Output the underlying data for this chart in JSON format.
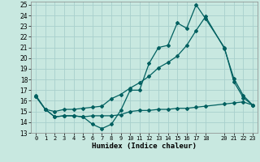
{
  "xlabel": "Humidex (Indice chaleur)",
  "bg_color": "#c8e8e0",
  "grid_color": "#a8d0cc",
  "line_color": "#006060",
  "xlim": [
    -0.5,
    23.5
  ],
  "ylim": [
    13,
    25.3
  ],
  "yticks": [
    13,
    14,
    15,
    16,
    17,
    18,
    19,
    20,
    21,
    22,
    23,
    24,
    25
  ],
  "xtick_positions": [
    0,
    1,
    2,
    3,
    4,
    5,
    6,
    7,
    8,
    9,
    10,
    11,
    12,
    13,
    14,
    15,
    16,
    17,
    18,
    20,
    21,
    22,
    23
  ],
  "xtick_labels": [
    "0",
    "1",
    "2",
    "3",
    "4",
    "5",
    "6",
    "7",
    "8",
    "9",
    "10",
    "11",
    "12",
    "13",
    "14",
    "15",
    "16",
    "17",
    "18",
    "20",
    "21",
    "22",
    "23"
  ],
  "series1_x": [
    0,
    1,
    2,
    3,
    4,
    5,
    6,
    7,
    8,
    9,
    10,
    11,
    12,
    13,
    14,
    15,
    16,
    17,
    18,
    20,
    21,
    22,
    23
  ],
  "series1_y": [
    16.5,
    15.2,
    14.5,
    14.6,
    14.6,
    14.5,
    13.8,
    13.4,
    13.8,
    15.1,
    17.0,
    17.0,
    19.5,
    21.0,
    21.2,
    23.3,
    22.8,
    25.0,
    23.7,
    21.0,
    17.8,
    16.3,
    15.6
  ],
  "series2_x": [
    0,
    1,
    2,
    3,
    4,
    5,
    6,
    7,
    8,
    9,
    10,
    11,
    12,
    13,
    14,
    15,
    16,
    17,
    18,
    20,
    21,
    22,
    23
  ],
  "series2_y": [
    16.4,
    15.2,
    14.5,
    14.6,
    14.6,
    14.5,
    14.6,
    14.6,
    14.6,
    14.7,
    15.0,
    15.1,
    15.1,
    15.2,
    15.2,
    15.3,
    15.3,
    15.4,
    15.5,
    15.7,
    15.8,
    15.9,
    15.6
  ],
  "series3_x": [
    0,
    1,
    2,
    3,
    4,
    5,
    6,
    7,
    8,
    9,
    10,
    11,
    12,
    13,
    14,
    15,
    16,
    17,
    18,
    20,
    21,
    22,
    23
  ],
  "series3_y": [
    16.4,
    15.2,
    15.0,
    15.2,
    15.2,
    15.3,
    15.4,
    15.5,
    16.2,
    16.6,
    17.2,
    17.7,
    18.3,
    19.1,
    19.6,
    20.2,
    21.2,
    22.6,
    23.9,
    20.9,
    18.1,
    16.5,
    15.6
  ]
}
